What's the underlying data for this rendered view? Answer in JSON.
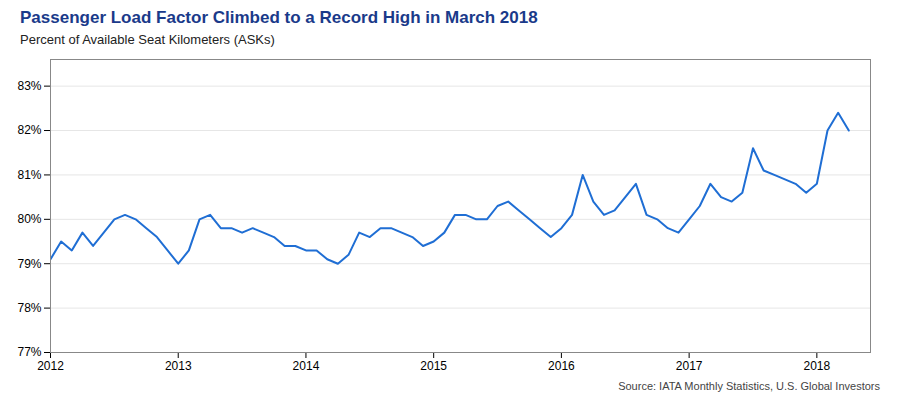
{
  "chart_data": {
    "type": "line",
    "title": "Passenger Load Factor Climbed to a Record High in March 2018",
    "subtitle": "Percent of Available Seat Kilometers (ASKs)",
    "source": "Source: IATA Monthly Statistics, U.S. Global Investors",
    "color": "#1f6ed4",
    "grid": true,
    "xlim": [
      2012,
      2018.42
    ],
    "xticks": [
      2012,
      2013,
      2014,
      2015,
      2016,
      2017,
      2018
    ],
    "ylim": [
      0.77,
      0.836
    ],
    "yticks": [
      {
        "value": 0.77,
        "label": "77%"
      },
      {
        "value": 0.78,
        "label": "78%"
      },
      {
        "value": 0.79,
        "label": "79%"
      },
      {
        "value": 0.8,
        "label": "80%"
      },
      {
        "value": 0.81,
        "label": "81%"
      },
      {
        "value": 0.82,
        "label": "82%"
      },
      {
        "value": 0.83,
        "label": "83%"
      }
    ],
    "x": [
      2012,
      2012.0833333333333,
      2012.1666666666667,
      2012.25,
      2012.3333333333333,
      2012.4166666666667,
      2012.5,
      2012.5833333333333,
      2012.6666666666667,
      2012.75,
      2012.8333333333333,
      2012.9166666666667,
      2013,
      2013.0833333333333,
      2013.1666666666667,
      2013.25,
      2013.3333333333333,
      2013.4166666666667,
      2013.5,
      2013.5833333333333,
      2013.6666666666667,
      2013.75,
      2013.8333333333333,
      2013.9166666666667,
      2014,
      2014.0833333333333,
      2014.1666666666667,
      2014.25,
      2014.3333333333333,
      2014.4166666666667,
      2014.5,
      2014.5833333333333,
      2014.6666666666667,
      2014.75,
      2014.8333333333333,
      2014.9166666666667,
      2015,
      2015.0833333333333,
      2015.1666666666667,
      2015.25,
      2015.3333333333333,
      2015.4166666666667,
      2015.5,
      2015.5833333333333,
      2015.6666666666667,
      2015.75,
      2015.8333333333333,
      2015.9166666666667,
      2016,
      2016.0833333333333,
      2016.1666666666667,
      2016.25,
      2016.3333333333333,
      2016.4166666666667,
      2016.5,
      2016.5833333333333,
      2016.6666666666667,
      2016.75,
      2016.8333333333333,
      2016.9166666666667,
      2017,
      2017.0833333333333,
      2017.1666666666667,
      2017.25,
      2017.3333333333333,
      2017.4166666666667,
      2017.5,
      2017.5833333333333,
      2017.6666666666667,
      2017.75,
      2017.8333333333333,
      2017.9166666666667,
      2018,
      2018.0833333333333,
      2018.1666666666667,
      2018.25
    ],
    "values": [
      0.791,
      0.795,
      0.793,
      0.797,
      0.794,
      0.797,
      0.8,
      0.801,
      0.8,
      0.798,
      0.796,
      0.793,
      0.79,
      0.793,
      0.8,
      0.801,
      0.798,
      0.798,
      0.797,
      0.798,
      0.797,
      0.796,
      0.794,
      0.794,
      0.793,
      0.793,
      0.791,
      0.79,
      0.792,
      0.797,
      0.796,
      0.798,
      0.798,
      0.797,
      0.796,
      0.794,
      0.795,
      0.797,
      0.801,
      0.801,
      0.8,
      0.8,
      0.803,
      0.804,
      0.802,
      0.8,
      0.798,
      0.796,
      0.798,
      0.801,
      0.81,
      0.804,
      0.801,
      0.802,
      0.805,
      0.808,
      0.801,
      0.8,
      0.798,
      0.797,
      0.8,
      0.803,
      0.808,
      0.805,
      0.804,
      0.806,
      0.816,
      0.811,
      0.81,
      0.809,
      0.808,
      0.806,
      0.808,
      0.82,
      0.824,
      0.82
    ]
  }
}
